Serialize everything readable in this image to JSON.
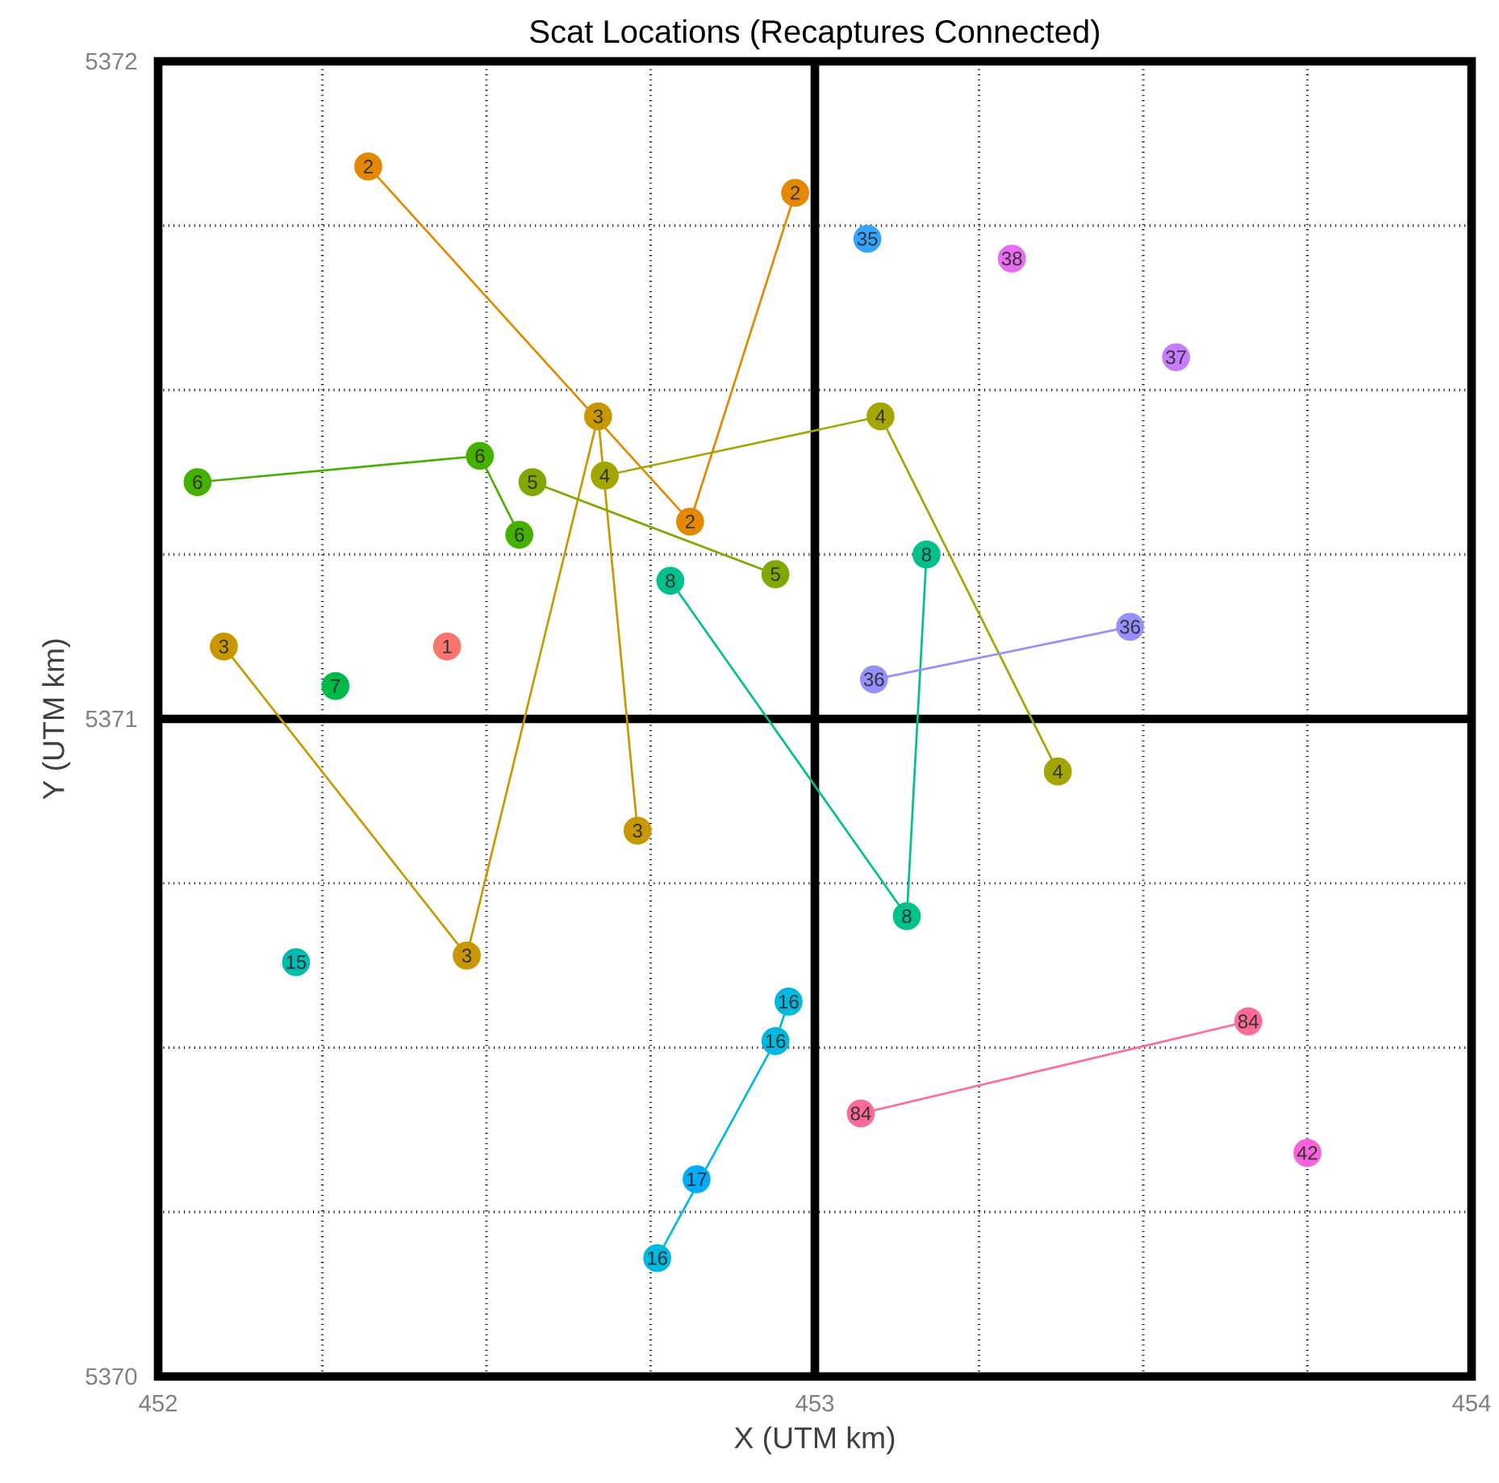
{
  "chart_data": {
    "type": "scatter",
    "title": "Scat Locations (Recaptures Connected)",
    "xlabel": "X (UTM km)",
    "ylabel": "Y (UTM km)",
    "xlim": [
      452,
      454
    ],
    "ylim": [
      5370,
      5372
    ],
    "xticks": [
      452,
      453,
      454
    ],
    "yticks": [
      5370,
      5371,
      5372
    ],
    "grid": true,
    "marker": "circle",
    "ref_lines": [
      {
        "axis": "x",
        "value": 453,
        "color": "#000000"
      },
      {
        "axis": "y",
        "value": 5371,
        "color": "#000000"
      }
    ],
    "series": [
      {
        "name": "1",
        "type": "scatter",
        "color": "#f8766d",
        "x": [
          452.44
        ],
        "values": [
          5371.11
        ]
      },
      {
        "name": "2",
        "type": "line",
        "color": "#e58700",
        "x": [
          452.32,
          452.81,
          452.97
        ],
        "values": [
          5371.84,
          5371.3,
          5371.8
        ]
      },
      {
        "name": "3",
        "type": "line",
        "color": "#c99800",
        "x": [
          452.1,
          452.47,
          452.67,
          452.73
        ],
        "values": [
          5371.11,
          5370.64,
          5371.46,
          5370.83
        ]
      },
      {
        "name": "4",
        "type": "line",
        "color": "#a3a500",
        "x": [
          452.68,
          453.1,
          453.37
        ],
        "values": [
          5371.37,
          5371.46,
          5370.92
        ]
      },
      {
        "name": "5",
        "type": "line",
        "color": "#7fa800",
        "x": [
          452.57,
          452.94
        ],
        "values": [
          5371.36,
          5371.22
        ]
      },
      {
        "name": "6",
        "type": "line",
        "color": "#44b000",
        "x": [
          452.06,
          452.49,
          452.55
        ],
        "values": [
          5371.36,
          5371.4,
          5371.28
        ]
      },
      {
        "name": "7",
        "type": "scatter",
        "color": "#00b948",
        "x": [
          452.27
        ],
        "values": [
          5371.05
        ]
      },
      {
        "name": "8",
        "type": "line",
        "color": "#00c08b",
        "x": [
          452.78,
          453.14,
          453.17
        ],
        "values": [
          5371.21,
          5370.7,
          5371.25
        ]
      },
      {
        "name": "15",
        "type": "scatter",
        "color": "#00bcb0",
        "x": [
          452.21
        ],
        "values": [
          5370.63
        ]
      },
      {
        "name": "16",
        "type": "line",
        "color": "#00b8e0",
        "x": [
          452.76,
          452.94,
          452.96
        ],
        "values": [
          5370.18,
          5370.51,
          5370.57
        ]
      },
      {
        "name": "17",
        "type": "scatter",
        "color": "#00acfc",
        "x": [
          452.82
        ],
        "values": [
          5370.3
        ]
      },
      {
        "name": "35",
        "type": "scatter",
        "color": "#35a2ff",
        "x": [
          453.08
        ],
        "values": [
          5371.73
        ]
      },
      {
        "name": "36",
        "type": "line",
        "color": "#9590ff",
        "x": [
          453.09,
          453.48
        ],
        "values": [
          5371.06,
          5371.14
        ]
      },
      {
        "name": "37",
        "type": "scatter",
        "color": "#c77cff",
        "x": [
          453.55
        ],
        "values": [
          5371.55
        ]
      },
      {
        "name": "38",
        "type": "scatter",
        "color": "#e76bf3",
        "x": [
          453.3
        ],
        "values": [
          5371.7
        ]
      },
      {
        "name": "42",
        "type": "scatter",
        "color": "#fa62db",
        "x": [
          453.75
        ],
        "values": [
          5370.34
        ]
      },
      {
        "name": "84",
        "type": "line",
        "color": "#ff6a98",
        "x": [
          453.07,
          453.66
        ],
        "values": [
          5370.4,
          5370.54
        ]
      }
    ]
  }
}
